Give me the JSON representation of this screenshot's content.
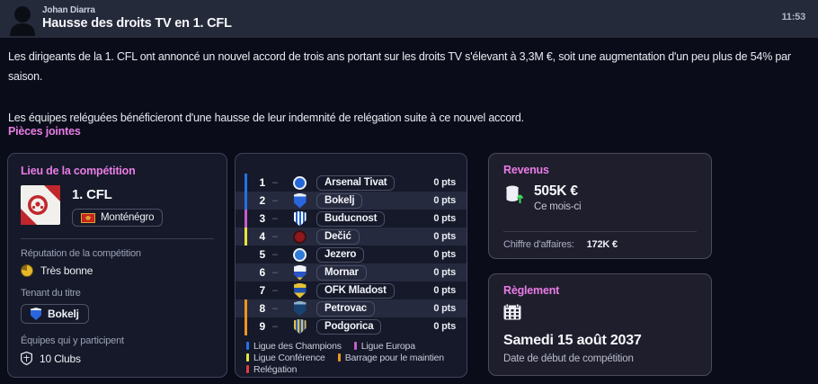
{
  "header": {
    "author": "Johan Diarra",
    "title": "Hausse des droits TV en 1. CFL",
    "time": "11:53"
  },
  "body": {
    "p1": "Les dirigeants de la 1. CFL ont annoncé un nouvel accord de trois ans portant sur les droits TV s'élevant à 3,3M €, soit une augmentation d'un peu plus de 54% par saison.",
    "p2": "Les équipes reléguées bénéficieront d'une hausse de leur indemnité de relégation suite à ce nouvel accord."
  },
  "attachments_label": "Pièces jointes",
  "competition": {
    "panel_title": "Lieu de la compétition",
    "name": "1. CFL",
    "nation": "Monténégro",
    "reputation_label": "Réputation de la compétition",
    "reputation_value": "Très bonne",
    "holder_label": "Tenant du titre",
    "holder": "Bokelj",
    "teams_label": "Équipes qui y participent",
    "teams_value": "10 Clubs"
  },
  "table": {
    "zones": {
      "champions": "#2471ea",
      "europa": "#c75bc9",
      "conference": "#e6e53a",
      "barrage": "#ee9320",
      "relegation": "#e23c3c",
      "none": "transparent"
    },
    "rows": [
      {
        "pos": "1",
        "trend": "–",
        "team": "Arsenal Tivat",
        "pts": "0 pts",
        "zone": "champions",
        "badge": {
          "shape": "circle",
          "pattern": "solid",
          "colors": [
            "#2466d8",
            "#e9edf6"
          ]
        }
      },
      {
        "pos": "2",
        "trend": "–",
        "team": "Bokelj",
        "pts": "0 pts",
        "zone": "champions",
        "badge": {
          "shape": "shield",
          "pattern": "topband",
          "colors": [
            "#e9edf6",
            "#2a67de"
          ]
        }
      },
      {
        "pos": "3",
        "trend": "–",
        "team": "Buducnost",
        "pts": "0 pts",
        "zone": "europa",
        "badge": {
          "shape": "shield",
          "pattern": "vstripes",
          "colors": [
            "#ffffff",
            "#2160d0"
          ]
        }
      },
      {
        "pos": "4",
        "trend": "–",
        "team": "Dečić",
        "pts": "0 pts",
        "zone": "conference",
        "badge": {
          "shape": "circle",
          "pattern": "solid",
          "colors": [
            "#8e181c",
            "#3a1012"
          ]
        }
      },
      {
        "pos": "5",
        "trend": "–",
        "team": "Jezero",
        "pts": "0 pts",
        "zone": "none",
        "badge": {
          "shape": "circle",
          "pattern": "solid",
          "colors": [
            "#2e7bd8",
            "#eef2fa"
          ]
        }
      },
      {
        "pos": "6",
        "trend": "–",
        "team": "Mornar",
        "pts": "0 pts",
        "zone": "none",
        "badge": {
          "shape": "shield",
          "pattern": "tricolor",
          "colors": [
            "#eef2fa",
            "#2a55c8",
            "#e8c832"
          ]
        }
      },
      {
        "pos": "7",
        "trend": "–",
        "team": "OFK Mladost",
        "pts": "0 pts",
        "zone": "none",
        "badge": {
          "shape": "shield",
          "pattern": "midband",
          "colors": [
            "#e3c236",
            "#1f4fae"
          ]
        }
      },
      {
        "pos": "8",
        "trend": "–",
        "team": "Petrovac",
        "pts": "0 pts",
        "zone": "barrage",
        "badge": {
          "shape": "shield",
          "pattern": "topband",
          "colors": [
            "#8fb3cf",
            "#174271"
          ]
        }
      },
      {
        "pos": "9",
        "trend": "–",
        "team": "Podgorica",
        "pts": "0 pts",
        "zone": "barrage",
        "badge": {
          "shape": "shield",
          "pattern": "vstripes",
          "colors": [
            "#e3c236",
            "#2a5ac8"
          ]
        }
      }
    ],
    "legend": [
      {
        "label": "Ligue des Champions",
        "color": "#2471ea"
      },
      {
        "label": "Ligue Europa",
        "color": "#c75bc9"
      },
      {
        "label": "Ligue Conférence",
        "color": "#e6e53a"
      },
      {
        "label": "Barrage pour le maintien",
        "color": "#ee9320"
      },
      {
        "label": "Relégation",
        "color": "#e23c3c"
      }
    ]
  },
  "revenue": {
    "panel_title": "Revenus",
    "amount": "505K €",
    "period": "Ce mois-ci",
    "turnover_label": "Chiffre d'affaires:",
    "turnover_value": "172K €"
  },
  "rules": {
    "panel_title": "Règlement",
    "date": "Samedi 15 août 2037",
    "date_label": "Date de début de compétition"
  },
  "colors": {
    "accent_pink": "#e87ce4",
    "page_bg": "#0a0d19",
    "header_bg": "#252a3b"
  }
}
